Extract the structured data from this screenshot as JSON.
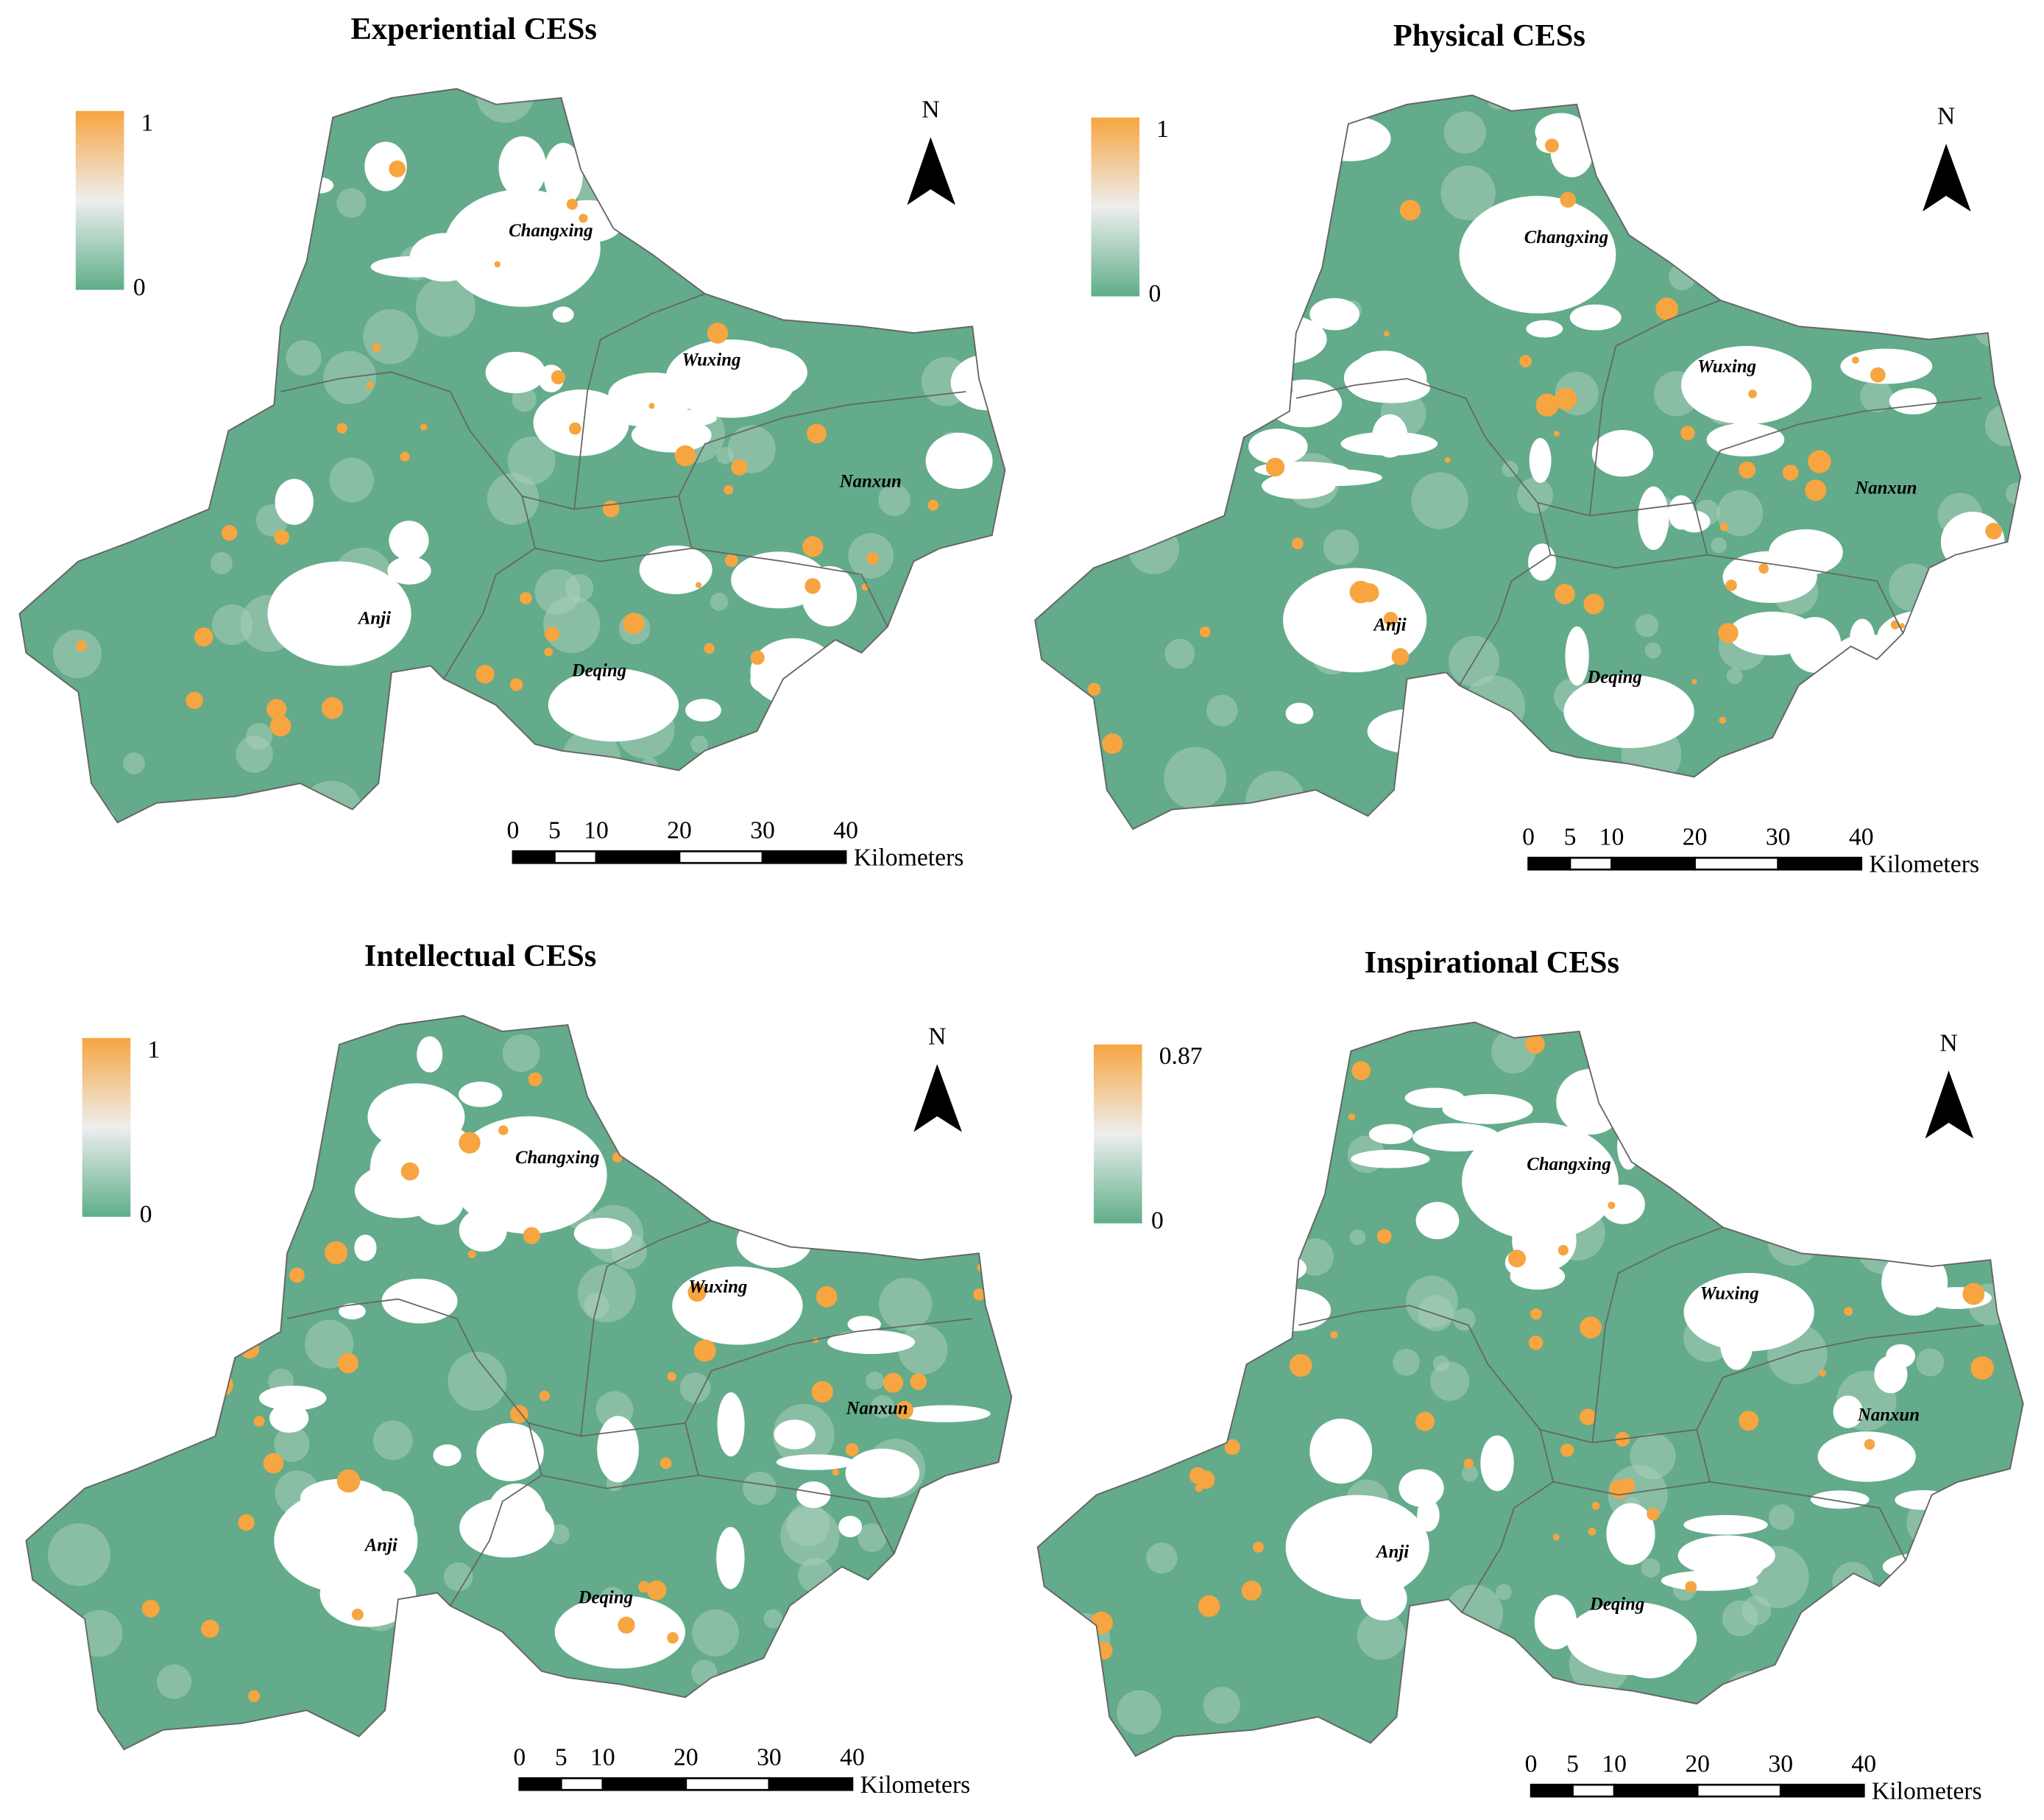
{
  "panels": [
    {
      "title": "Experiential CESs",
      "legend": {
        "max": 1,
        "min": 0
      },
      "north": "N",
      "districts": [
        "Changxing",
        "Wuxing",
        "Nanxun",
        "Anji",
        "Deqing"
      ],
      "scale_bar": {
        "ticks": [
          0,
          5,
          10,
          20,
          30,
          40
        ],
        "unit": "Kilometers"
      }
    },
    {
      "title": "Physical CESs",
      "legend": {
        "max": 1,
        "min": 0
      },
      "north": "N",
      "districts": [
        "Changxing",
        "Wuxing",
        "Nanxun",
        "Anji",
        "Deqing"
      ],
      "scale_bar": {
        "ticks": [
          0,
          5,
          10,
          20,
          30,
          40
        ],
        "unit": "Kilometers"
      }
    },
    {
      "title": "Intellectual CESs",
      "legend": {
        "max": 1,
        "min": 0
      },
      "north": "N",
      "districts": [
        "Changxing",
        "Wuxing",
        "Nanxun",
        "Anji",
        "Deqing"
      ],
      "scale_bar": {
        "ticks": [
          0,
          5,
          10,
          20,
          30,
          40
        ],
        "unit": "Kilometers"
      }
    },
    {
      "title": "Inspirational CESs",
      "legend": {
        "max": 0.87,
        "min": 0
      },
      "north": "N",
      "districts": [
        "Changxing",
        "Wuxing",
        "Nanxun",
        "Anji",
        "Deqing"
      ],
      "scale_bar": {
        "ticks": [
          0,
          5,
          10,
          20,
          30,
          40
        ],
        "unit": "Kilometers"
      }
    }
  ]
}
